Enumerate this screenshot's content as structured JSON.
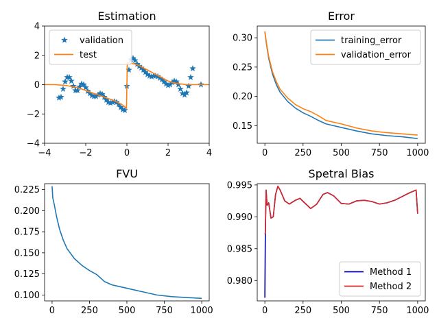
{
  "colors": {
    "blue": "#1f77b4",
    "orange": "#ff7f0e",
    "navy": "#0000a0",
    "red": "#d62728"
  },
  "chart_data": [
    {
      "id": "estimation",
      "type": "scatter+line",
      "title": "Estimation",
      "xlim": [
        -4,
        4
      ],
      "ylim": [
        -4,
        4
      ],
      "xticks": [
        -4,
        -2,
        0,
        2,
        4
      ],
      "yticks": [
        -4,
        -2,
        0,
        2,
        4
      ],
      "xticklabels": [
        "−4",
        "−2",
        "0",
        "2",
        "4"
      ],
      "yticklabels": [
        "−4",
        "−2",
        "0",
        "2",
        "4"
      ],
      "legend": {
        "placement": "upper-left",
        "entries": [
          "validation",
          "test"
        ]
      },
      "series": [
        {
          "name": "validation",
          "kind": "star-markers",
          "color": "#1f77b4",
          "x": [
            -3.3,
            -3.2,
            -3.1,
            -3.0,
            -2.9,
            -2.8,
            -2.7,
            -2.6,
            -2.5,
            -2.4,
            -2.3,
            -2.2,
            -2.1,
            -2.0,
            -1.9,
            -1.8,
            -1.7,
            -1.6,
            -1.5,
            -1.4,
            -1.3,
            -1.2,
            -1.1,
            -1.0,
            -0.9,
            -0.8,
            -0.7,
            -0.6,
            -0.5,
            -0.4,
            -0.3,
            -0.2,
            -0.1,
            0.0,
            0.1,
            0.2,
            0.3,
            0.4,
            0.5,
            0.6,
            0.7,
            0.8,
            0.9,
            1.0,
            1.1,
            1.2,
            1.3,
            1.4,
            1.5,
            1.6,
            1.7,
            1.8,
            1.9,
            2.0,
            2.1,
            2.2,
            2.3,
            2.4,
            2.5,
            2.6,
            2.7,
            2.8,
            2.9,
            3.0,
            3.1,
            3.2,
            3.6
          ],
          "y": [
            -0.9,
            -0.85,
            -0.3,
            0.2,
            0.5,
            0.5,
            0.25,
            -0.1,
            -0.4,
            -0.4,
            -0.15,
            0.05,
            0.0,
            -0.2,
            -0.45,
            -0.6,
            -0.75,
            -0.8,
            -0.8,
            -0.7,
            -0.6,
            -0.65,
            -0.85,
            -1.05,
            -1.2,
            -1.25,
            -1.2,
            -1.15,
            -1.2,
            -1.35,
            -1.55,
            -1.7,
            -1.75,
            -0.1,
            1.0,
            1.7,
            1.8,
            1.65,
            1.4,
            1.25,
            1.15,
            1.0,
            0.85,
            0.7,
            0.6,
            0.55,
            0.6,
            0.6,
            0.55,
            0.45,
            0.35,
            0.2,
            0.05,
            -0.05,
            0.0,
            0.15,
            0.25,
            0.2,
            0.0,
            -0.3,
            -0.6,
            -0.7,
            -0.55,
            -0.1,
            0.5,
            1.1,
            0.0
          ]
        },
        {
          "name": "test",
          "kind": "line",
          "color": "#ff7f0e",
          "x": [
            -4.0,
            -3.5,
            -3.0,
            -2.8,
            -2.6,
            -2.4,
            -2.2,
            -2.0,
            -1.8,
            -1.6,
            -1.4,
            -1.2,
            -1.0,
            -0.8,
            -0.6,
            -0.4,
            -0.2,
            -0.02,
            0.02,
            0.2,
            0.4,
            0.6,
            0.8,
            1.0,
            1.2,
            1.4,
            1.6,
            1.8,
            2.0,
            2.2,
            2.4,
            2.6,
            2.8,
            3.0,
            3.5,
            4.0
          ],
          "y": [
            0.0,
            0.0,
            -0.05,
            -0.1,
            -0.15,
            -0.2,
            -0.3,
            -0.4,
            -0.5,
            -0.6,
            -0.7,
            -0.8,
            -0.9,
            -1.0,
            -1.1,
            -1.25,
            -1.4,
            -1.6,
            1.5,
            1.45,
            1.4,
            1.3,
            1.15,
            1.0,
            0.85,
            0.7,
            0.55,
            0.4,
            0.25,
            0.15,
            0.1,
            0.05,
            0.02,
            0.0,
            0.0,
            0.0
          ]
        }
      ]
    },
    {
      "id": "error",
      "type": "line",
      "title": "Error",
      "xlim": [
        -50,
        1050
      ],
      "ylim": [
        0.12,
        0.32
      ],
      "xticks": [
        0,
        250,
        500,
        750,
        1000
      ],
      "yticks": [
        0.15,
        0.2,
        0.25,
        0.3
      ],
      "xticklabels": [
        "0",
        "250",
        "500",
        "750",
        "1000"
      ],
      "yticklabels": [
        "0.15",
        "0.20",
        "0.25",
        "0.30"
      ],
      "legend": {
        "placement": "upper-right",
        "entries": [
          "training_error",
          "validation_error"
        ]
      },
      "x": [
        0,
        10,
        25,
        50,
        75,
        100,
        150,
        200,
        250,
        300,
        350,
        400,
        450,
        500,
        600,
        700,
        800,
        900,
        1000
      ],
      "series": [
        {
          "name": "training_error",
          "color": "#1f77b4",
          "values": [
            0.31,
            0.29,
            0.265,
            0.238,
            0.22,
            0.207,
            0.191,
            0.18,
            0.172,
            0.166,
            0.159,
            0.153,
            0.15,
            0.147,
            0.141,
            0.136,
            0.133,
            0.131,
            0.128
          ]
        },
        {
          "name": "validation_error",
          "color": "#ff7f0e",
          "values": [
            0.311,
            0.292,
            0.268,
            0.242,
            0.225,
            0.212,
            0.197,
            0.186,
            0.179,
            0.174,
            0.167,
            0.159,
            0.156,
            0.153,
            0.146,
            0.141,
            0.138,
            0.136,
            0.134
          ]
        }
      ]
    },
    {
      "id": "fvu",
      "type": "line",
      "title": "FVU",
      "xlim": [
        -50,
        1050
      ],
      "ylim": [
        0.093,
        0.232
      ],
      "xticks": [
        0,
        250,
        500,
        750,
        1000
      ],
      "yticks": [
        0.1,
        0.125,
        0.15,
        0.175,
        0.2,
        0.225
      ],
      "xticklabels": [
        "0",
        "250",
        "500",
        "750",
        "1000"
      ],
      "yticklabels": [
        "0.100",
        "0.125",
        "0.150",
        "0.175",
        "0.200",
        "0.225"
      ],
      "x": [
        0,
        5,
        15,
        30,
        50,
        75,
        100,
        150,
        200,
        250,
        300,
        350,
        400,
        450,
        500,
        600,
        700,
        800,
        900,
        1000
      ],
      "series": [
        {
          "name": "",
          "color": "#1f77b4",
          "values": [
            0.229,
            0.215,
            0.207,
            0.193,
            0.178,
            0.165,
            0.155,
            0.143,
            0.135,
            0.129,
            0.124,
            0.116,
            0.112,
            0.11,
            0.108,
            0.104,
            0.1,
            0.098,
            0.097,
            0.096
          ]
        }
      ]
    },
    {
      "id": "spectral-bias",
      "type": "line",
      "title": "Spetral Bias",
      "xlim": [
        -50,
        1050
      ],
      "ylim": [
        0.9768,
        0.9952
      ],
      "xticks": [
        0,
        250,
        500,
        750,
        1000
      ],
      "yticks": [
        0.98,
        0.985,
        0.99,
        0.995
      ],
      "xticklabels": [
        "0",
        "250",
        "500",
        "750",
        "1000"
      ],
      "yticklabels": [
        "0.980",
        "0.985",
        "0.990",
        "0.995"
      ],
      "legend": {
        "placement": "lower-right",
        "entries": [
          "Method 1",
          "Method 2"
        ]
      },
      "x": [
        0,
        3,
        8,
        15,
        25,
        40,
        55,
        70,
        85,
        100,
        130,
        160,
        200,
        230,
        260,
        300,
        340,
        380,
        410,
        450,
        500,
        550,
        600,
        650,
        700,
        750,
        800,
        850,
        900,
        950,
        990,
        1000
      ],
      "series": [
        {
          "name": "Method 1",
          "color": "#0000a0",
          "values": [
            0.9773,
            0.987,
            0.9942,
            0.9918,
            0.9922,
            0.9898,
            0.99,
            0.9935,
            0.9948,
            0.9942,
            0.9925,
            0.992,
            0.9926,
            0.9929,
            0.9922,
            0.9913,
            0.992,
            0.9935,
            0.9938,
            0.9933,
            0.9921,
            0.992,
            0.9925,
            0.9926,
            0.9924,
            0.992,
            0.9922,
            0.9926,
            0.9932,
            0.9938,
            0.9942,
            0.9905
          ]
        },
        {
          "name": "Method 2",
          "color": "#d62728",
          "values": [
            0.9873,
            0.9875,
            0.9942,
            0.9918,
            0.9922,
            0.9898,
            0.99,
            0.9935,
            0.9948,
            0.9942,
            0.9925,
            0.992,
            0.9926,
            0.9929,
            0.9922,
            0.9913,
            0.992,
            0.9935,
            0.9938,
            0.9933,
            0.9921,
            0.992,
            0.9925,
            0.9926,
            0.9924,
            0.992,
            0.9922,
            0.9926,
            0.9932,
            0.9938,
            0.9942,
            0.9905
          ]
        }
      ]
    }
  ]
}
